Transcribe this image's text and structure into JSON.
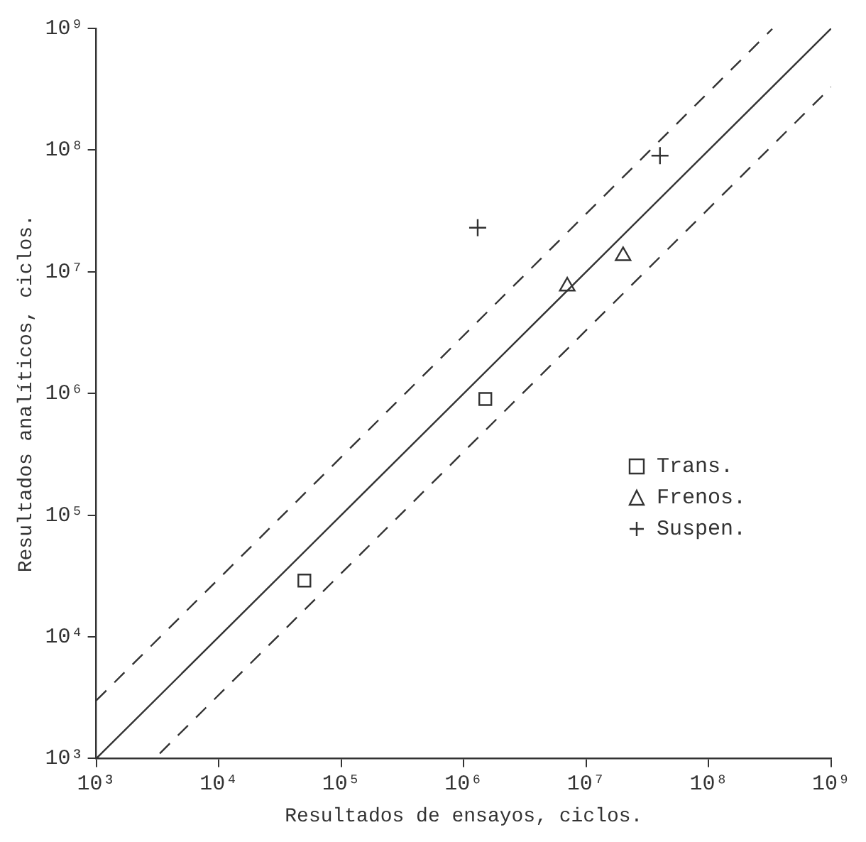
{
  "chart_data": {
    "type": "scatter",
    "xlabel": "Resultados de ensayos, ciclos.",
    "ylabel": "Resultados analíticos, ciclos.",
    "log": "xy",
    "grid": false,
    "legend": "right",
    "xlim": [
      1000,
      1000000000
    ],
    "ylim": [
      1000,
      1000000000
    ],
    "xticks": [
      {
        "value": 1000,
        "label": "10³"
      },
      {
        "value": 10000,
        "label": "10⁴"
      },
      {
        "value": 100000,
        "label": "10⁵"
      },
      {
        "value": 1000000,
        "label": "10⁶"
      },
      {
        "value": 10000000,
        "label": "10⁷"
      },
      {
        "value": 100000000,
        "label": "10⁸"
      },
      {
        "value": 1000000000,
        "label": "10⁹"
      }
    ],
    "yticks": [
      {
        "value": 1000,
        "label": "10³"
      },
      {
        "value": 10000,
        "label": "10⁴"
      },
      {
        "value": 100000,
        "label": "10⁵"
      },
      {
        "value": 1000000,
        "label": "10⁶"
      },
      {
        "value": 10000000,
        "label": "10⁷"
      },
      {
        "value": 100000000,
        "label": "10⁸"
      },
      {
        "value": 1000000000,
        "label": "10⁹"
      }
    ],
    "series": [
      {
        "name": "Trans.",
        "type": "scatter",
        "marker": "square",
        "color": "#333333",
        "x": [
          50000,
          1500000
        ],
        "values": [
          29000,
          900000
        ]
      },
      {
        "name": "Frenos.",
        "type": "scatter",
        "marker": "triangle",
        "color": "#333333",
        "x": [
          7000000,
          20000000
        ],
        "values": [
          7600000,
          13500000
        ]
      },
      {
        "name": "Suspen.",
        "type": "scatter",
        "marker": "cross",
        "color": "#333333",
        "x": [
          1300000,
          40000000
        ],
        "values": [
          23000000,
          90000000
        ]
      },
      {
        "type": "line",
        "marker": "none",
        "line_style": "solid",
        "color": "#333333",
        "x": [
          1000,
          1000000000
        ],
        "values": [
          1000,
          1000000000
        ]
      },
      {
        "type": "line",
        "marker": "none",
        "line_style": "dashed",
        "color": "#333333",
        "x": [
          1000,
          330000000
        ],
        "values": [
          3000,
          990000000
        ]
      },
      {
        "type": "line",
        "marker": "none",
        "line_style": "dashed",
        "color": "#333333",
        "x": [
          3300,
          1000000000
        ],
        "values": [
          1100,
          330000000
        ]
      }
    ]
  }
}
